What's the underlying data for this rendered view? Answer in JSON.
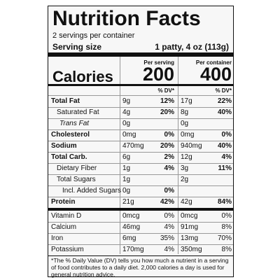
{
  "title": "Nutrition Facts",
  "servings": "2 servings per container",
  "serving_size": {
    "label": "Serving size",
    "value": "1 patty, 4 oz (113g)"
  },
  "columns": {
    "per_serving": "Per serving",
    "per_container": "Per container"
  },
  "calories": {
    "label": "Calories",
    "per_serving": "200",
    "per_container": "400"
  },
  "dv_header": "% DV*",
  "nutrients": [
    {
      "name": "Total Fat",
      "serving_amount": "9g",
      "serving_dv": "12%",
      "container_amount": "17g",
      "container_dv": "22%"
    },
    {
      "name": "Saturated Fat",
      "serving_amount": "4g",
      "serving_dv": "20%",
      "container_amount": "8g",
      "container_dv": "40%"
    },
    {
      "name": "Trans Fat",
      "serving_amount": "0g",
      "container_amount": "0g"
    },
    {
      "name": "Cholesterol",
      "serving_amount": "0mg",
      "serving_dv": "0%",
      "container_amount": "0mg",
      "container_dv": "0%"
    },
    {
      "name": "Sodium",
      "serving_amount": "470mg",
      "serving_dv": "20%",
      "container_amount": "940mg",
      "container_dv": "40%"
    },
    {
      "name": "Total Carb.",
      "serving_amount": "6g",
      "serving_dv": "2%",
      "container_amount": "12g",
      "container_dv": "4%"
    },
    {
      "name": "Dietary Fiber",
      "serving_amount": "1g",
      "serving_dv": "4%",
      "container_amount": "3g",
      "container_dv": "11%"
    },
    {
      "name": "Total Sugars",
      "serving_amount": "1g",
      "container_amount": "2g"
    },
    {
      "name": "Incl. Added Sugars",
      "serving_amount": "0g",
      "serving_dv": "0%"
    },
    {
      "name": "Protein",
      "serving_amount": "21g",
      "serving_dv": "42%",
      "container_amount": "42g",
      "container_dv": "84%"
    }
  ],
  "vitamins": [
    {
      "name": "Vitamin D",
      "serving_amount": "0mcg",
      "serving_dv": "0%",
      "container_amount": "0mcg",
      "container_dv": "0%"
    },
    {
      "name": "Calcium",
      "serving_amount": "46mg",
      "serving_dv": "4%",
      "container_amount": "91mg",
      "container_dv": "8%"
    },
    {
      "name": "Iron",
      "serving_amount": "6mg",
      "serving_dv": "35%",
      "container_amount": "13mg",
      "container_dv": "70%"
    },
    {
      "name": "Potassium",
      "serving_amount": "170mg",
      "serving_dv": "4%",
      "container_amount": "350mg",
      "container_dv": "8%"
    }
  ],
  "footnote": "*The % Daily Value (DV) tells you how much a nutrient in a serving of food contributes to a daily diet. 2,000 calories a day is used for general nutrition advice."
}
